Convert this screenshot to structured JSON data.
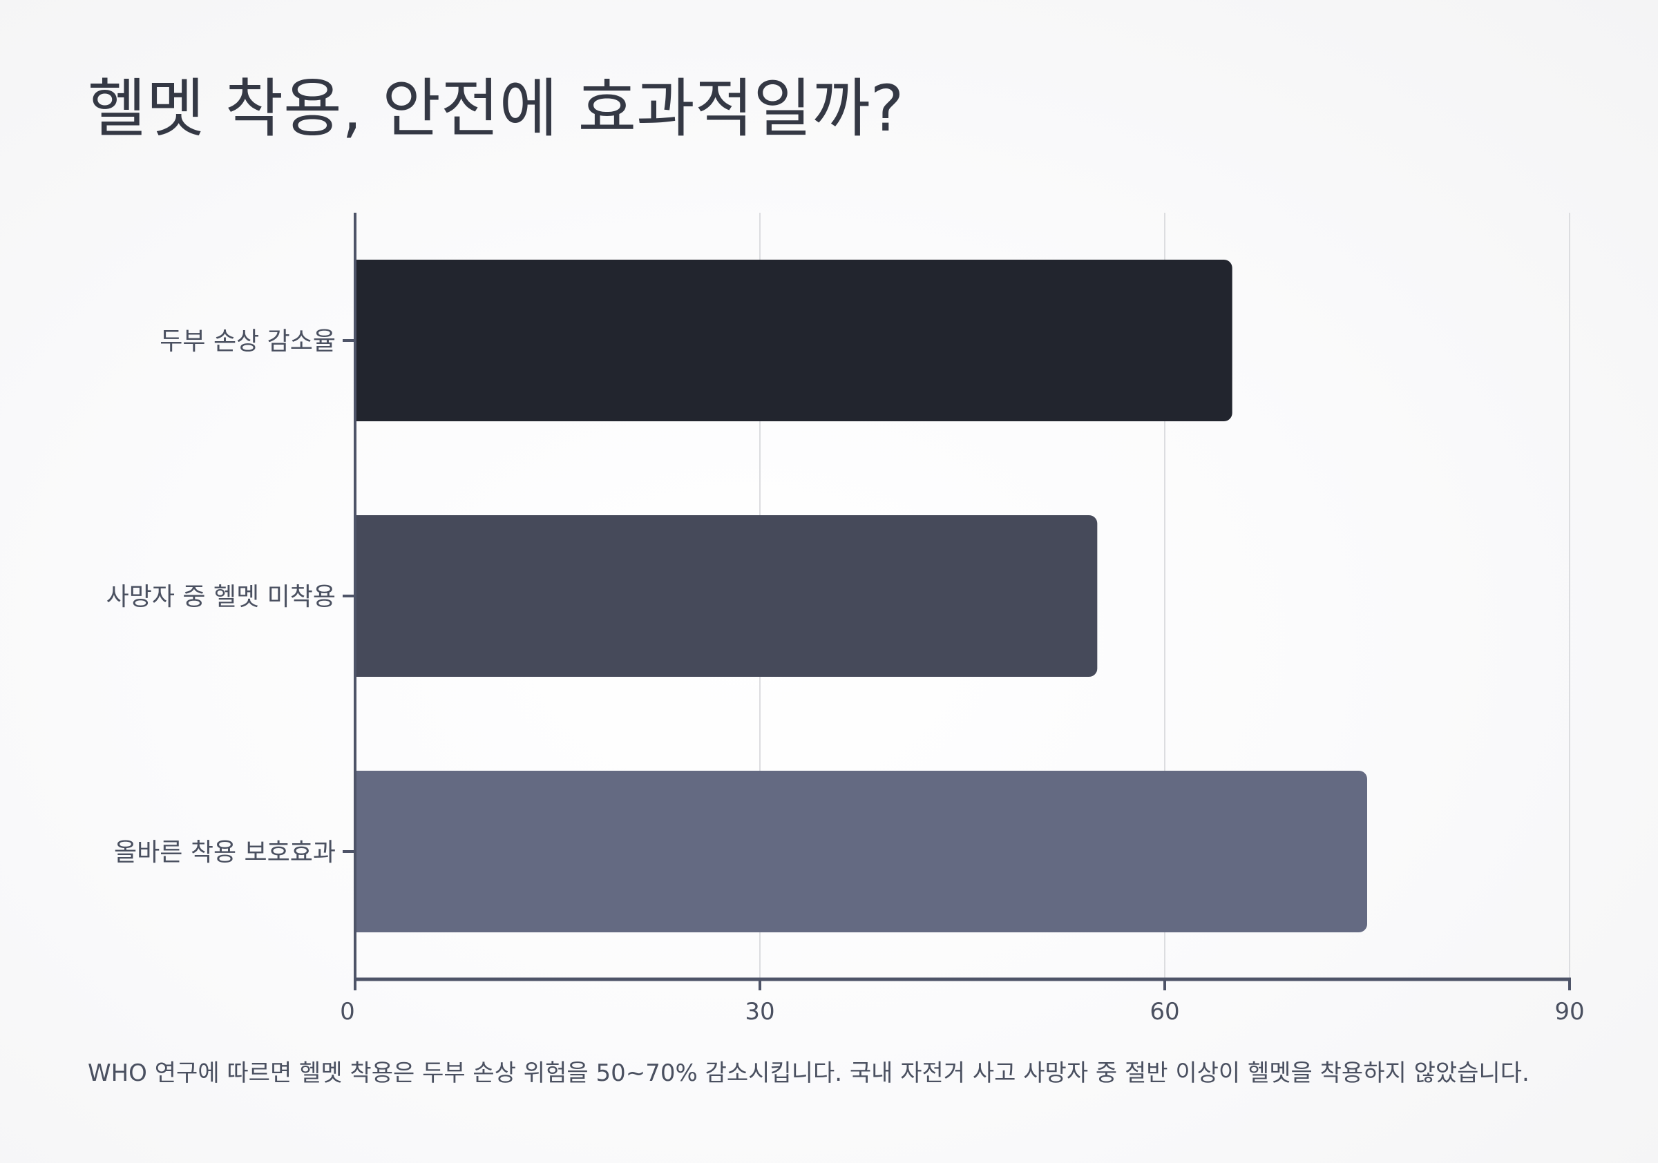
{
  "page": {
    "title": "헬멧 착용, 안전에 효과적일까?",
    "footnote": "WHO 연구에 따르면 헬멧 착용은 두부 손상 위험을 50~70% 감소시킵니다. 국내 자전거 사고 사망자 중 절반 이상이 헬멧을 착용하지 않았습니다."
  },
  "chart_data": {
    "type": "bar",
    "orientation": "horizontal",
    "title": "헬멧 착용, 안전에 효과적일까?",
    "categories": [
      "두부 손상 감소율",
      "사망자 중 헬멧 미착용",
      "올바른 착용 보호효과"
    ],
    "values": [
      65,
      55,
      75
    ],
    "colors": [
      "#22252e",
      "#464a5a",
      "#646a82"
    ],
    "xlim": [
      0,
      90
    ],
    "xticks": [
      0,
      30,
      60,
      90
    ],
    "xlabel": "",
    "ylabel": "",
    "grid": "vertical",
    "legend": "none"
  },
  "colors": {
    "axis": "#4e5468",
    "grid": "#dcdde0",
    "tick_label": "#4a5060"
  }
}
